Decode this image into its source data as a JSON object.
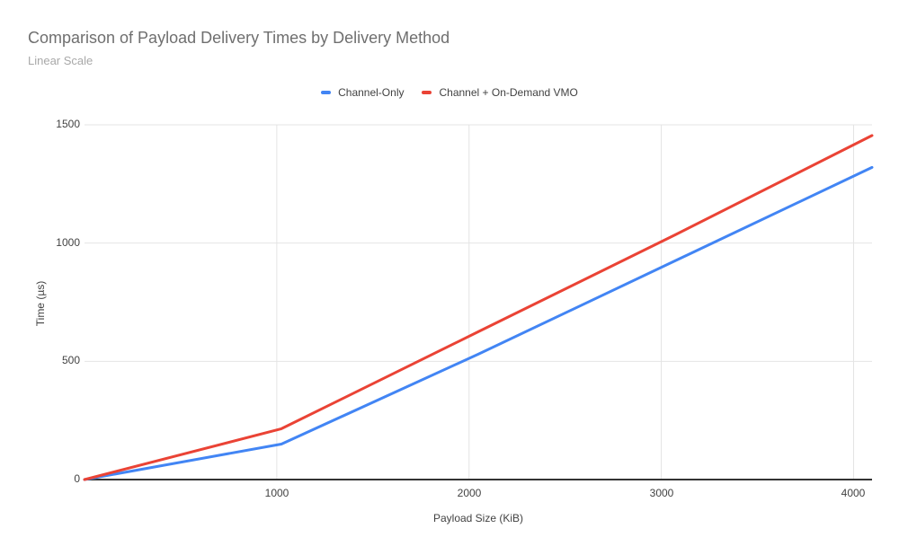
{
  "chart_data": {
    "type": "line",
    "title": "Comparison of Payload Delivery Times by Delivery Method",
    "subtitle": "Linear Scale",
    "xlabel": "Payload Size (KiB)",
    "ylabel": "Time (µs)",
    "xlim": [
      0,
      4096
    ],
    "ylim": [
      0,
      1500
    ],
    "x_ticks": [
      1000,
      2000,
      3000,
      4000
    ],
    "y_ticks": [
      0,
      500,
      1000,
      1500
    ],
    "grid": true,
    "legend_position": "top-center",
    "x": [
      0,
      1024,
      2048,
      3072,
      4096
    ],
    "series": [
      {
        "name": "Channel-Only",
        "color": "#4285f4",
        "values": [
          0,
          150,
          530,
          925,
          1320
        ]
      },
      {
        "name": "Channel + On-Demand VMO",
        "color": "#ea4335",
        "values": [
          0,
          215,
          625,
          1035,
          1455
        ]
      }
    ],
    "colors": {
      "gridline": "#e4e4e4",
      "axis_line": "#333333",
      "tick_label": "#424242",
      "title": "#6f6f6f",
      "subtitle": "#a8a8a8"
    }
  }
}
